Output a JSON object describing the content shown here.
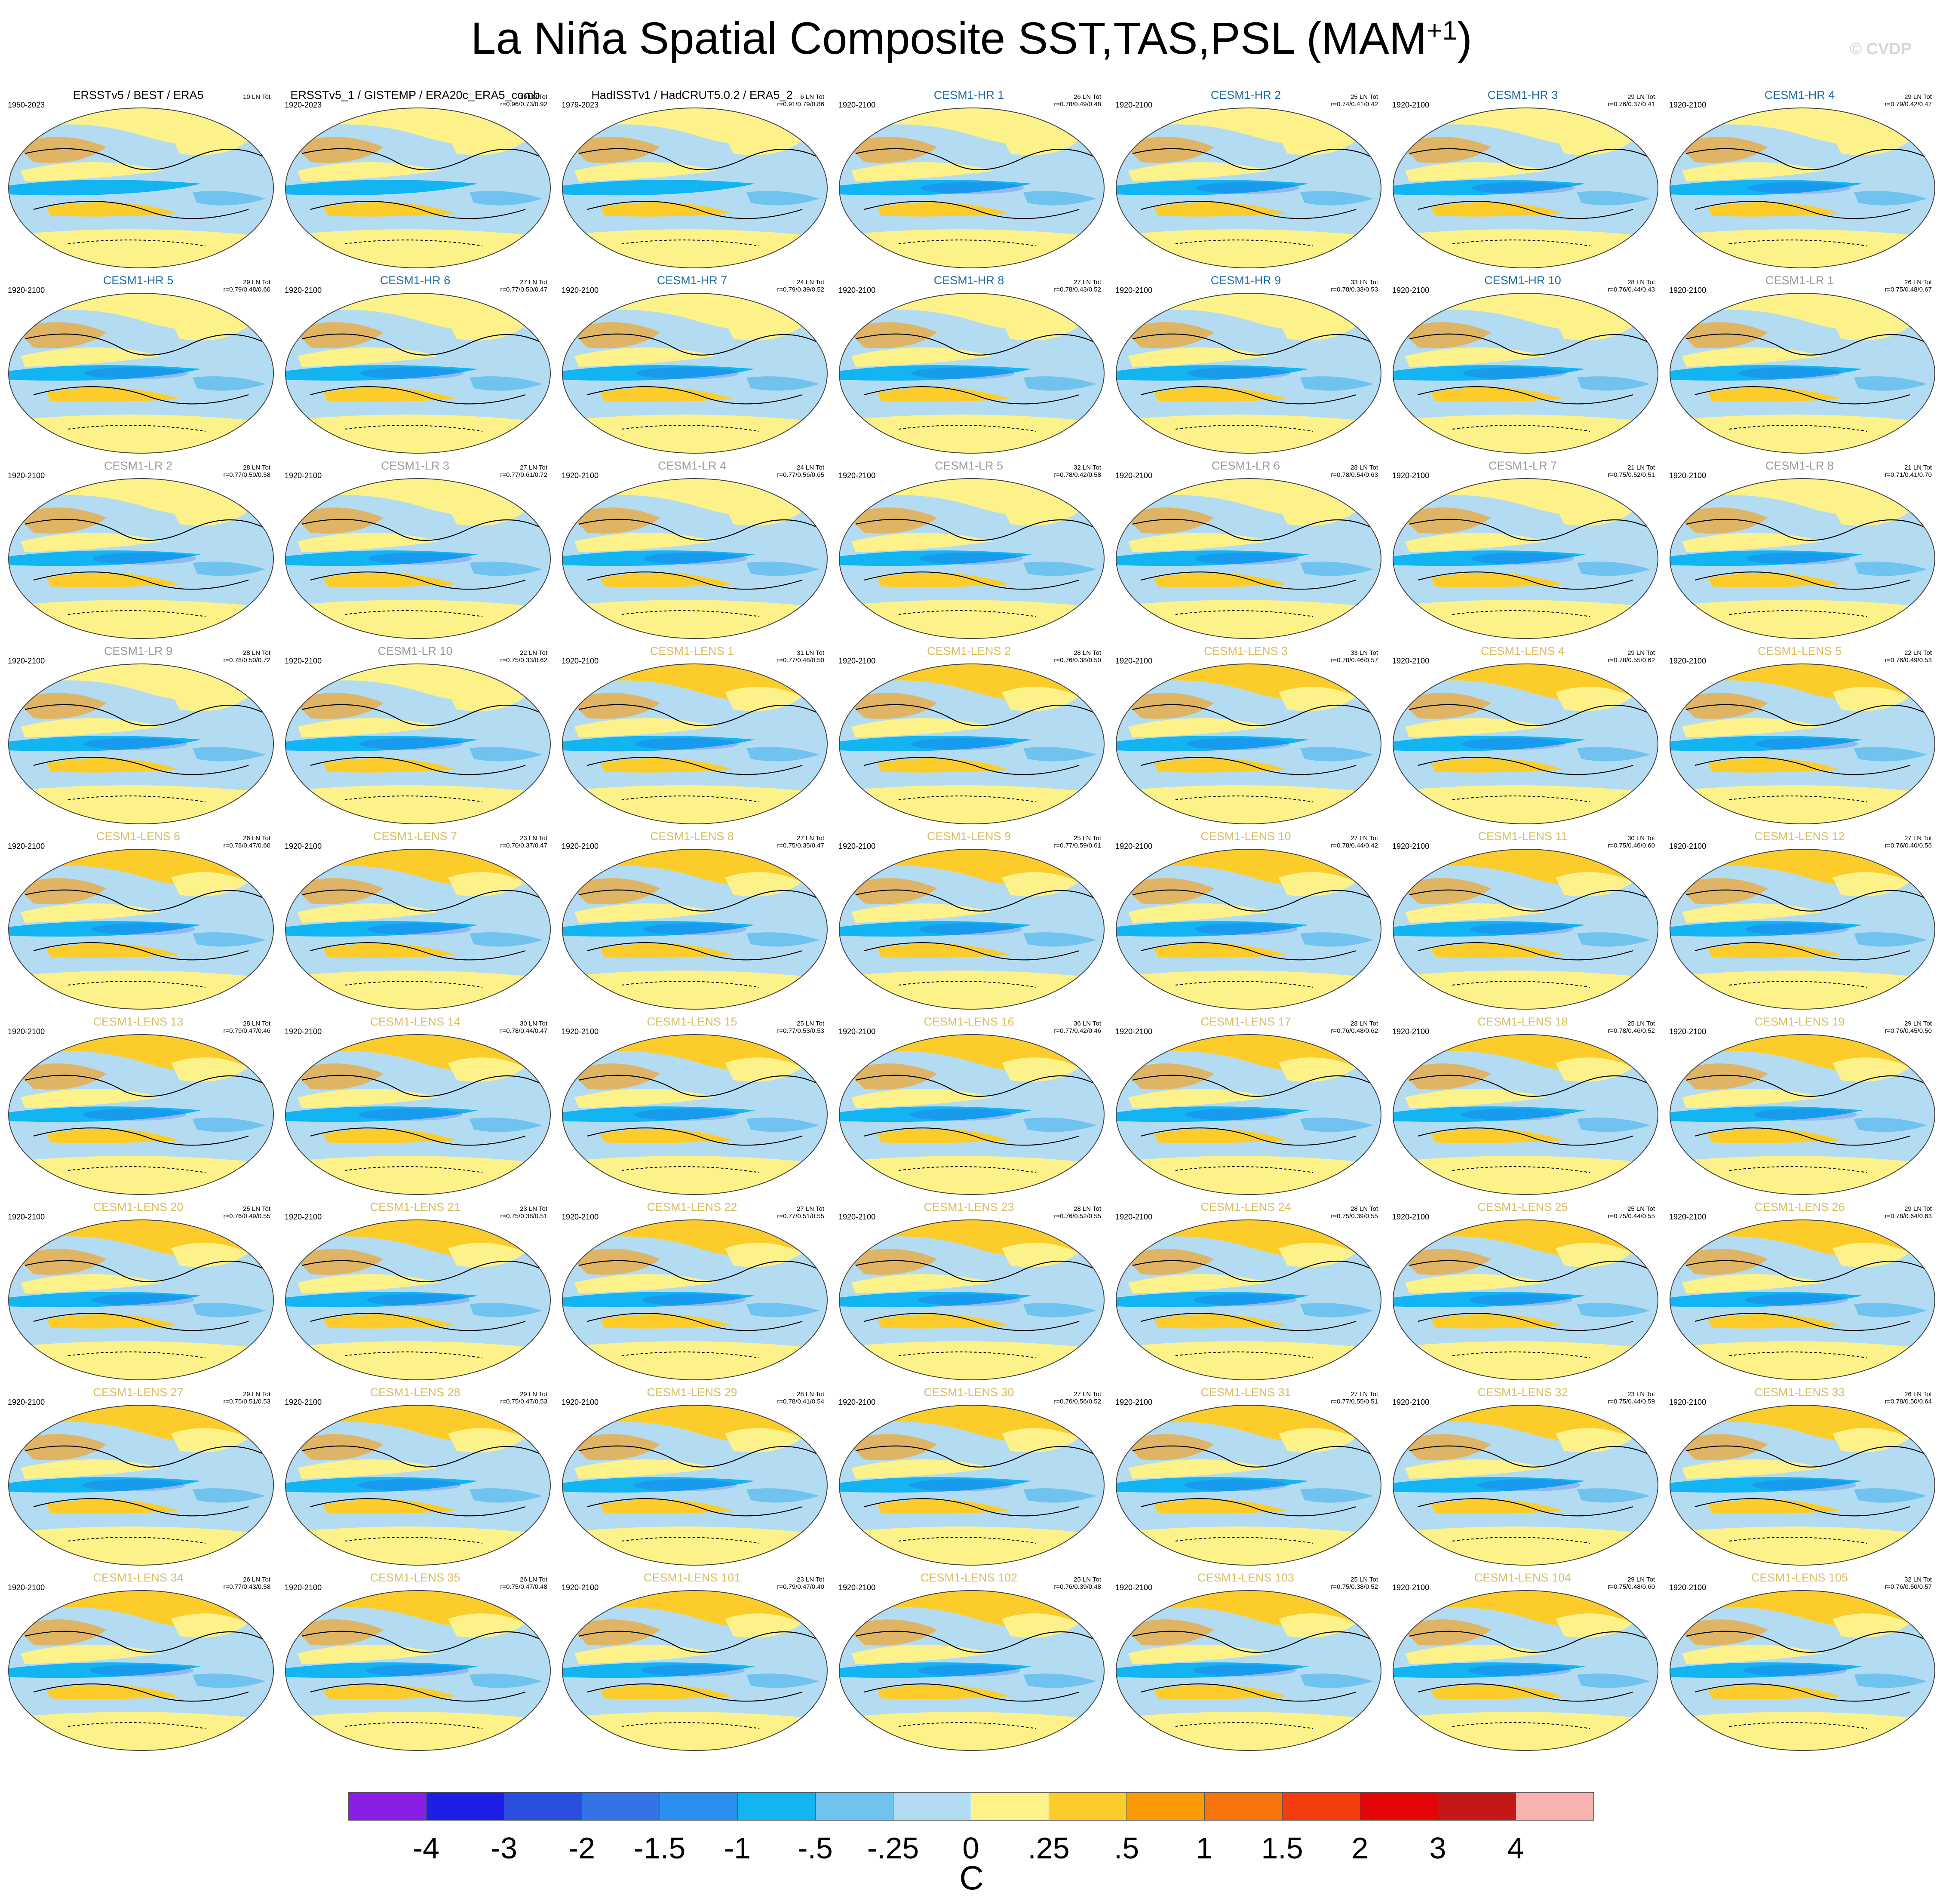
{
  "title": {
    "main": "La Niña Spatial Composite SST,TAS,PSL (MAM",
    "sup": "+1",
    "close": ")"
  },
  "watermark": "© CVDP",
  "panels": [
    {
      "name": "ERSSTv5 / BEST / ERA5",
      "years": "1950-2023",
      "stats1": "10 LN Tot",
      "stats2": "",
      "group": "obs"
    },
    {
      "name": "ERSSTv5_1 / GISTEMP / ERA20c_ERA5_comb",
      "years": "1920-2023",
      "stats1": "16 LN Tot",
      "stats2": "r=0.96/0.73/0.92",
      "group": "obs"
    },
    {
      "name": "HadISSTv1 / HadCRUT5.0.2 / ERA5_2",
      "years": "1979-2023",
      "stats1": "6 LN Tot",
      "stats2": "r=0.91/0.79/0.86",
      "group": "obs"
    },
    {
      "name": "CESM1-HR 1",
      "years": "1920-2100",
      "stats1": "26 LN Tot",
      "stats2": "r=0.78/0.49/0.48",
      "group": "hr"
    },
    {
      "name": "CESM1-HR 2",
      "years": "1920-2100",
      "stats1": "25 LN Tot",
      "stats2": "r=0.74/0.41/0.42",
      "group": "hr"
    },
    {
      "name": "CESM1-HR 3",
      "years": "1920-2100",
      "stats1": "29 LN Tot",
      "stats2": "r=0.76/0.37/0.41",
      "group": "hr"
    },
    {
      "name": "CESM1-HR 4",
      "years": "1920-2100",
      "stats1": "29 LN Tot",
      "stats2": "r=0.79/0.42/0.47",
      "group": "hr"
    },
    {
      "name": "CESM1-HR 5",
      "years": "1920-2100",
      "stats1": "29 LN Tot",
      "stats2": "r=0.79/0.48/0.60",
      "group": "hr"
    },
    {
      "name": "CESM1-HR 6",
      "years": "1920-2100",
      "stats1": "27 LN Tot",
      "stats2": "r=0.77/0.50/0.47",
      "group": "hr"
    },
    {
      "name": "CESM1-HR 7",
      "years": "1920-2100",
      "stats1": "24 LN Tot",
      "stats2": "r=0.79/0.39/0.52",
      "group": "hr"
    },
    {
      "name": "CESM1-HR 8",
      "years": "1920-2100",
      "stats1": "27 LN Tot",
      "stats2": "r=0.78/0.43/0.52",
      "group": "hr"
    },
    {
      "name": "CESM1-HR 9",
      "years": "1920-2100",
      "stats1": "33 LN Tot",
      "stats2": "r=0.78/0.33/0.53",
      "group": "hr"
    },
    {
      "name": "CESM1-HR 10",
      "years": "1920-2100",
      "stats1": "28 LN Tot",
      "stats2": "r=0.76/0.44/0.43",
      "group": "hr"
    },
    {
      "name": "CESM1-LR 1",
      "years": "1920-2100",
      "stats1": "26 LN Tot",
      "stats2": "r=0.75/0.48/0.67",
      "group": "lr"
    },
    {
      "name": "CESM1-LR 2",
      "years": "1920-2100",
      "stats1": "28 LN Tot",
      "stats2": "r=0.77/0.50/0.58",
      "group": "lr"
    },
    {
      "name": "CESM1-LR 3",
      "years": "1920-2100",
      "stats1": "27 LN Tot",
      "stats2": "r=0.77/0.61/0.72",
      "group": "lr"
    },
    {
      "name": "CESM1-LR 4",
      "years": "1920-2100",
      "stats1": "24 LN Tot",
      "stats2": "r=0.77/0.56/0.65",
      "group": "lr"
    },
    {
      "name": "CESM1-LR 5",
      "years": "1920-2100",
      "stats1": "32 LN Tot",
      "stats2": "r=0.78/0.42/0.58",
      "group": "lr"
    },
    {
      "name": "CESM1-LR 6",
      "years": "1920-2100",
      "stats1": "28 LN Tot",
      "stats2": "r=0.78/0.54/0.63",
      "group": "lr"
    },
    {
      "name": "CESM1-LR 7",
      "years": "1920-2100",
      "stats1": "21 LN Tot",
      "stats2": "r=0.75/0.52/0.51",
      "group": "lr"
    },
    {
      "name": "CESM1-LR 8",
      "years": "1920-2100",
      "stats1": "21 LN Tot",
      "stats2": "r=0.71/0.41/0.70",
      "group": "lr"
    },
    {
      "name": "CESM1-LR 9",
      "years": "1920-2100",
      "stats1": "28 LN Tot",
      "stats2": "r=0.78/0.50/0.72",
      "group": "lr"
    },
    {
      "name": "CESM1-LR 10",
      "years": "1920-2100",
      "stats1": "22 LN Tot",
      "stats2": "r=0.75/0.33/0.62",
      "group": "lr"
    },
    {
      "name": "CESM1-LENS 1",
      "years": "1920-2100",
      "stats1": "31 LN Tot",
      "stats2": "r=0.77/0.48/0.50",
      "group": "lens"
    },
    {
      "name": "CESM1-LENS 2",
      "years": "1920-2100",
      "stats1": "28 LN Tot",
      "stats2": "r=0.76/0.38/0.50",
      "group": "lens"
    },
    {
      "name": "CESM1-LENS 3",
      "years": "1920-2100",
      "stats1": "33 LN Tot",
      "stats2": "r=0.78/0.46/0.57",
      "group": "lens"
    },
    {
      "name": "CESM1-LENS 4",
      "years": "1920-2100",
      "stats1": "29 LN Tot",
      "stats2": "r=0.78/0.55/0.62",
      "group": "lens"
    },
    {
      "name": "CESM1-LENS 5",
      "years": "1920-2100",
      "stats1": "22 LN Tot",
      "stats2": "r=0.76/0.49/0.53",
      "group": "lens"
    },
    {
      "name": "CESM1-LENS 6",
      "years": "1920-2100",
      "stats1": "26 LN Tot",
      "stats2": "r=0.78/0.47/0.60",
      "group": "lens"
    },
    {
      "name": "CESM1-LENS 7",
      "years": "1920-2100",
      "stats1": "23 LN Tot",
      "stats2": "r=0.70/0.37/0.47",
      "group": "lens"
    },
    {
      "name": "CESM1-LENS 8",
      "years": "1920-2100",
      "stats1": "27 LN Tot",
      "stats2": "r=0.75/0.35/0.47",
      "group": "lens"
    },
    {
      "name": "CESM1-LENS 9",
      "years": "1920-2100",
      "stats1": "25 LN Tot",
      "stats2": "r=0.77/0.59/0.61",
      "group": "lens"
    },
    {
      "name": "CESM1-LENS 10",
      "years": "1920-2100",
      "stats1": "27 LN Tot",
      "stats2": "r=0.78/0.44/0.42",
      "group": "lens"
    },
    {
      "name": "CESM1-LENS 11",
      "years": "1920-2100",
      "stats1": "30 LN Tot",
      "stats2": "r=0.75/0.46/0.60",
      "group": "lens"
    },
    {
      "name": "CESM1-LENS 12",
      "years": "1920-2100",
      "stats1": "27 LN Tot",
      "stats2": "r=0.76/0.40/0.56",
      "group": "lens"
    },
    {
      "name": "CESM1-LENS 13",
      "years": "1920-2100",
      "stats1": "28 LN Tot",
      "stats2": "r=0.79/0.47/0.46",
      "group": "lens"
    },
    {
      "name": "CESM1-LENS 14",
      "years": "1920-2100",
      "stats1": "30 LN Tot",
      "stats2": "r=0.78/0.44/0.47",
      "group": "lens"
    },
    {
      "name": "CESM1-LENS 15",
      "years": "1920-2100",
      "stats1": "25 LN Tot",
      "stats2": "r=0.77/0.53/0.53",
      "group": "lens"
    },
    {
      "name": "CESM1-LENS 16",
      "years": "1920-2100",
      "stats1": "36 LN Tot",
      "stats2": "r=0.77/0.42/0.46",
      "group": "lens"
    },
    {
      "name": "CESM1-LENS 17",
      "years": "1920-2100",
      "stats1": "28 LN Tot",
      "stats2": "r=0.76/0.48/0.62",
      "group": "lens"
    },
    {
      "name": "CESM1-LENS 18",
      "years": "1920-2100",
      "stats1": "25 LN Tot",
      "stats2": "r=0.78/0.46/0.52",
      "group": "lens"
    },
    {
      "name": "CESM1-LENS 19",
      "years": "1920-2100",
      "stats1": "29 LN Tot",
      "stats2": "r=0.76/0.45/0.50",
      "group": "lens"
    },
    {
      "name": "CESM1-LENS 20",
      "years": "1920-2100",
      "stats1": "25 LN Tot",
      "stats2": "r=0.76/0.49/0.55",
      "group": "lens"
    },
    {
      "name": "CESM1-LENS 21",
      "years": "1920-2100",
      "stats1": "23 LN Tot",
      "stats2": "r=0.75/0.38/0.51",
      "group": "lens"
    },
    {
      "name": "CESM1-LENS 22",
      "years": "1920-2100",
      "stats1": "27 LN Tot",
      "stats2": "r=0.77/0.51/0.55",
      "group": "lens"
    },
    {
      "name": "CESM1-LENS 23",
      "years": "1920-2100",
      "stats1": "28 LN Tot",
      "stats2": "r=0.76/0.52/0.55",
      "group": "lens"
    },
    {
      "name": "CESM1-LENS 24",
      "years": "1920-2100",
      "stats1": "28 LN Tot",
      "stats2": "r=0.75/0.39/0.55",
      "group": "lens"
    },
    {
      "name": "CESM1-LENS 25",
      "years": "1920-2100",
      "stats1": "25 LN Tot",
      "stats2": "r=0.75/0.44/0.55",
      "group": "lens"
    },
    {
      "name": "CESM1-LENS 26",
      "years": "1920-2100",
      "stats1": "29 LN Tot",
      "stats2": "r=0.78/0.64/0.63",
      "group": "lens"
    },
    {
      "name": "CESM1-LENS 27",
      "years": "1920-2100",
      "stats1": "29 LN Tot",
      "stats2": "r=0.75/0.51/0.53",
      "group": "lens"
    },
    {
      "name": "CESM1-LENS 28",
      "years": "1920-2100",
      "stats1": "29 LN Tot",
      "stats2": "r=0.75/0.47/0.53",
      "group": "lens"
    },
    {
      "name": "CESM1-LENS 29",
      "years": "1920-2100",
      "stats1": "28 LN Tot",
      "stats2": "r=0.78/0.41/0.54",
      "group": "lens"
    },
    {
      "name": "CESM1-LENS 30",
      "years": "1920-2100",
      "stats1": "27 LN Tot",
      "stats2": "r=0.76/0.56/0.52",
      "group": "lens"
    },
    {
      "name": "CESM1-LENS 31",
      "years": "1920-2100",
      "stats1": "27 LN Tot",
      "stats2": "r=0.77/0.55/0.51",
      "group": "lens"
    },
    {
      "name": "CESM1-LENS 32",
      "years": "1920-2100",
      "stats1": "23 LN Tot",
      "stats2": "r=0.75/0.44/0.59",
      "group": "lens"
    },
    {
      "name": "CESM1-LENS 33",
      "years": "1920-2100",
      "stats1": "26 LN Tot",
      "stats2": "r=0.78/0.50/0.64",
      "group": "lens"
    },
    {
      "name": "CESM1-LENS 34",
      "years": "1920-2100",
      "stats1": "26 LN Tot",
      "stats2": "r=0.77/0.43/0.58",
      "group": "lens"
    },
    {
      "name": "CESM1-LENS 35",
      "years": "1920-2100",
      "stats1": "26 LN Tot",
      "stats2": "r=0.75/0.47/0.48",
      "group": "lens"
    },
    {
      "name": "CESM1-LENS 101",
      "years": "1920-2100",
      "stats1": "23 LN Tot",
      "stats2": "r=0.79/0.47/0.40",
      "group": "lens"
    },
    {
      "name": "CESM1-LENS 102",
      "years": "1920-2100",
      "stats1": "25 LN Tot",
      "stats2": "r=0.76/0.39/0.48",
      "group": "lens"
    },
    {
      "name": "CESM1-LENS 103",
      "years": "1920-2100",
      "stats1": "25 LN Tot",
      "stats2": "r=0.75/0.38/0.52",
      "group": "lens"
    },
    {
      "name": "CESM1-LENS 104",
      "years": "1920-2100",
      "stats1": "29 LN Tot",
      "stats2": "r=0.75/0.48/0.60",
      "group": "lens"
    },
    {
      "name": "CESM1-LENS 105",
      "years": "1920-2100",
      "stats1": "32 LN Tot",
      "stats2": "r=0.76/0.50/0.57",
      "group": "lens"
    }
  ],
  "colorbar": {
    "labels": [
      "-4",
      "-3",
      "-2",
      "-1.5",
      "-1",
      "-.5",
      "-.25",
      "0",
      ".25",
      ".5",
      "1",
      "1.5",
      "2",
      "3",
      "4"
    ],
    "colors": [
      "#8a1ee6",
      "#1e1ee6",
      "#2a4fdf",
      "#3473e6",
      "#2b8ff0",
      "#12b4f2",
      "#6fc3ee",
      "#b3dcf3",
      "#fdf28a",
      "#fccd2a",
      "#fb9a05",
      "#f8740c",
      "#f43c0f",
      "#e40606",
      "#c41818",
      "#f8b3b0"
    ],
    "units": "C"
  },
  "map_colors": {
    "ocean_light": "#b3dcf3",
    "mid_blue": "#6fc3ee",
    "blue": "#12b4f2",
    "yellow": "#fdf28a",
    "orange": "#fccd2a",
    "dark_orange": "#fb9a05",
    "red": "#f43c0f",
    "purple_blue": "#2a4fdf"
  }
}
